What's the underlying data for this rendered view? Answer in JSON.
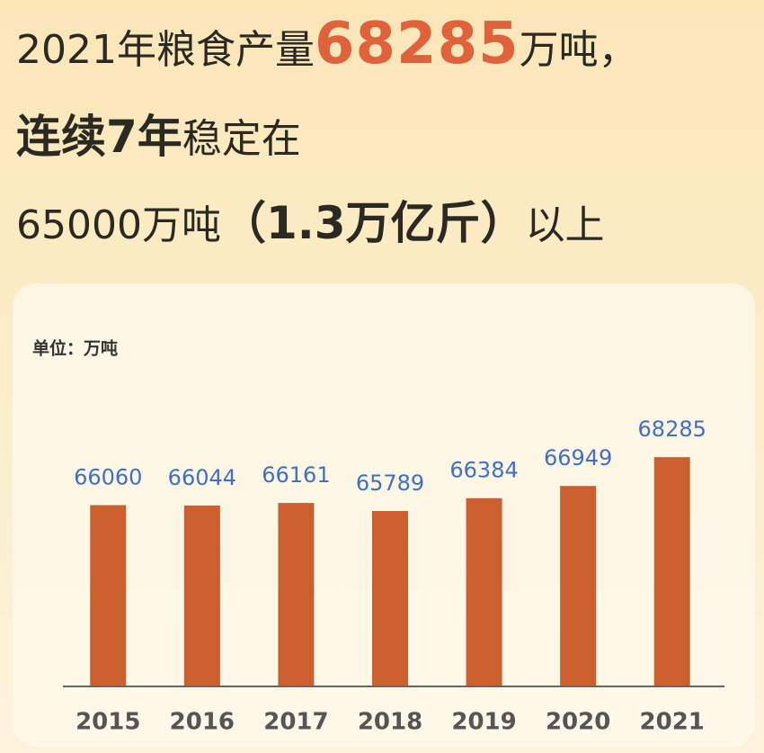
{
  "headline": {
    "line1": [
      "2021年粮食产量",
      "68285",
      "万吨，"
    ],
    "line2": [
      "连续7年",
      "稳定在"
    ],
    "line3": [
      "65000万吨",
      "（1.3万亿斤）",
      "以上"
    ]
  },
  "chart_data": {
    "type": "bar",
    "unit_label": "单位：万吨",
    "categories": [
      "2015",
      "2016",
      "2017",
      "2018",
      "2019",
      "2020",
      "2021"
    ],
    "values": [
      66060,
      66044,
      66161,
      65789,
      66384,
      66949,
      68285
    ],
    "color": "#cc5f2e",
    "label_color": "#3f6fc6",
    "ylim": [
      57700,
      69000
    ]
  }
}
